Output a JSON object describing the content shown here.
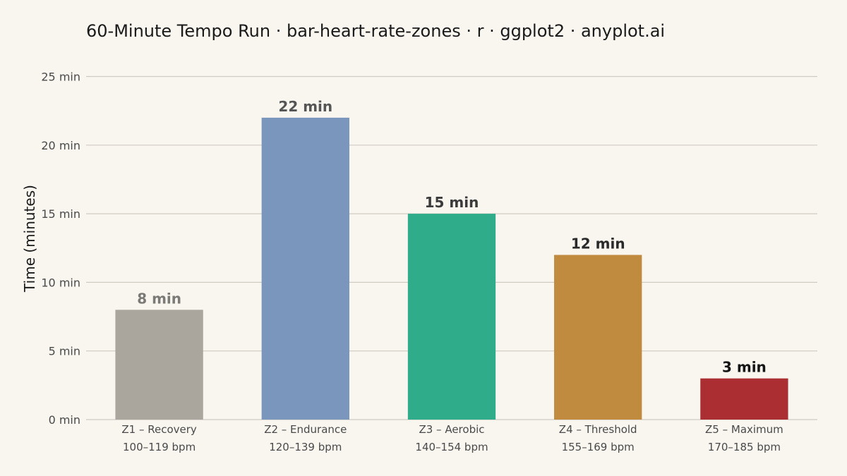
{
  "chart_data": {
    "type": "bar",
    "title": "60-Minute Tempo Run · bar-heart-rate-zones · r · ggplot2 · anyplot.ai",
    "ylabel": "Time (minutes)",
    "xlabel": "",
    "ylim": [
      0,
      25
    ],
    "yticks": [
      "0 min",
      "5 min",
      "10 min",
      "15 min",
      "20 min",
      "25 min"
    ],
    "ytick_values": [
      0,
      5,
      10,
      15,
      20,
      25
    ],
    "grid": true,
    "legend": "none",
    "categories": [
      {
        "zone": "Z1 – Recovery",
        "range": "100–119 bpm"
      },
      {
        "zone": "Z2 – Endurance",
        "range": "120–139 bpm"
      },
      {
        "zone": "Z3 – Aerobic",
        "range": "140–154 bpm"
      },
      {
        "zone": "Z4 – Threshold",
        "range": "155–169 bpm"
      },
      {
        "zone": "Z5 – Maximum",
        "range": "170–185 bpm"
      }
    ],
    "values": [
      8,
      22,
      15,
      12,
      3
    ],
    "data_labels": [
      "8 min",
      "22 min",
      "15 min",
      "12 min",
      "3 min"
    ],
    "bar_colors": [
      "#aaa69e",
      "#7b96bd",
      "#2fad8a",
      "#c08a3f",
      "#ab2e33"
    ],
    "label_colors": [
      "#7c7a76",
      "#555555",
      "#3b3b3b",
      "#2a2a2a",
      "#151515"
    ]
  }
}
